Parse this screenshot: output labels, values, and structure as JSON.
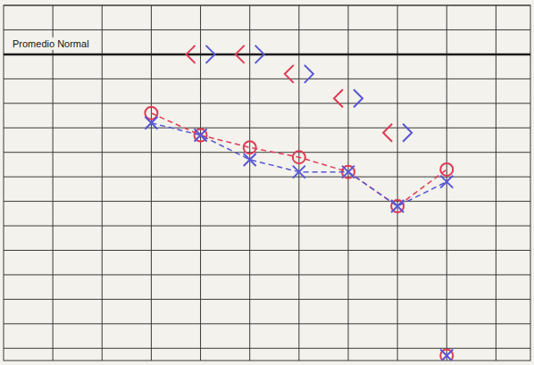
{
  "chart_data": {
    "type": "line",
    "annotations": [
      {
        "text": "Promedio Normal",
        "y": 0
      }
    ],
    "xlim": [
      0,
      10.7
    ],
    "ylim": [
      -20,
      125
    ],
    "xticks": [
      1,
      2,
      3,
      4,
      5,
      6,
      7,
      8,
      9,
      10
    ],
    "yticks": [
      -20,
      -10,
      0,
      10,
      20,
      30,
      40,
      50,
      60,
      70,
      80,
      90,
      100,
      110,
      120
    ],
    "grid": true,
    "tick_labels": false,
    "series": [
      {
        "color": "#e03a55",
        "marker": "circle",
        "line_style": "dashed",
        "x": [
          3,
          4,
          5,
          6,
          7,
          8,
          9
        ],
        "values": [
          24,
          33,
          38,
          42,
          48,
          62,
          47
        ]
      },
      {
        "color": "#5656d6",
        "marker": "x",
        "line_style": "dashed",
        "x": [
          3,
          4,
          5,
          6,
          7,
          8,
          9
        ],
        "values": [
          28,
          33,
          43,
          48,
          48,
          62,
          52
        ]
      },
      {
        "color": "#e03a55",
        "marker": "left-bracket",
        "line_style": "none",
        "x": [
          4,
          5,
          6,
          7,
          8
        ],
        "values": [
          0,
          0,
          8,
          18,
          32
        ]
      },
      {
        "color": "#5656d6",
        "marker": "right-bracket",
        "line_style": "none",
        "x": [
          4,
          5,
          6,
          7,
          8
        ],
        "values": [
          0,
          0,
          8,
          18,
          32
        ]
      },
      {
        "color": "#e03a55",
        "marker": "circle",
        "line_style": "none",
        "x": [
          9
        ],
        "values": [
          123
        ]
      },
      {
        "color": "#5656d6",
        "marker": "x",
        "line_style": "none",
        "x": [
          9
        ],
        "values": [
          123
        ]
      }
    ]
  }
}
